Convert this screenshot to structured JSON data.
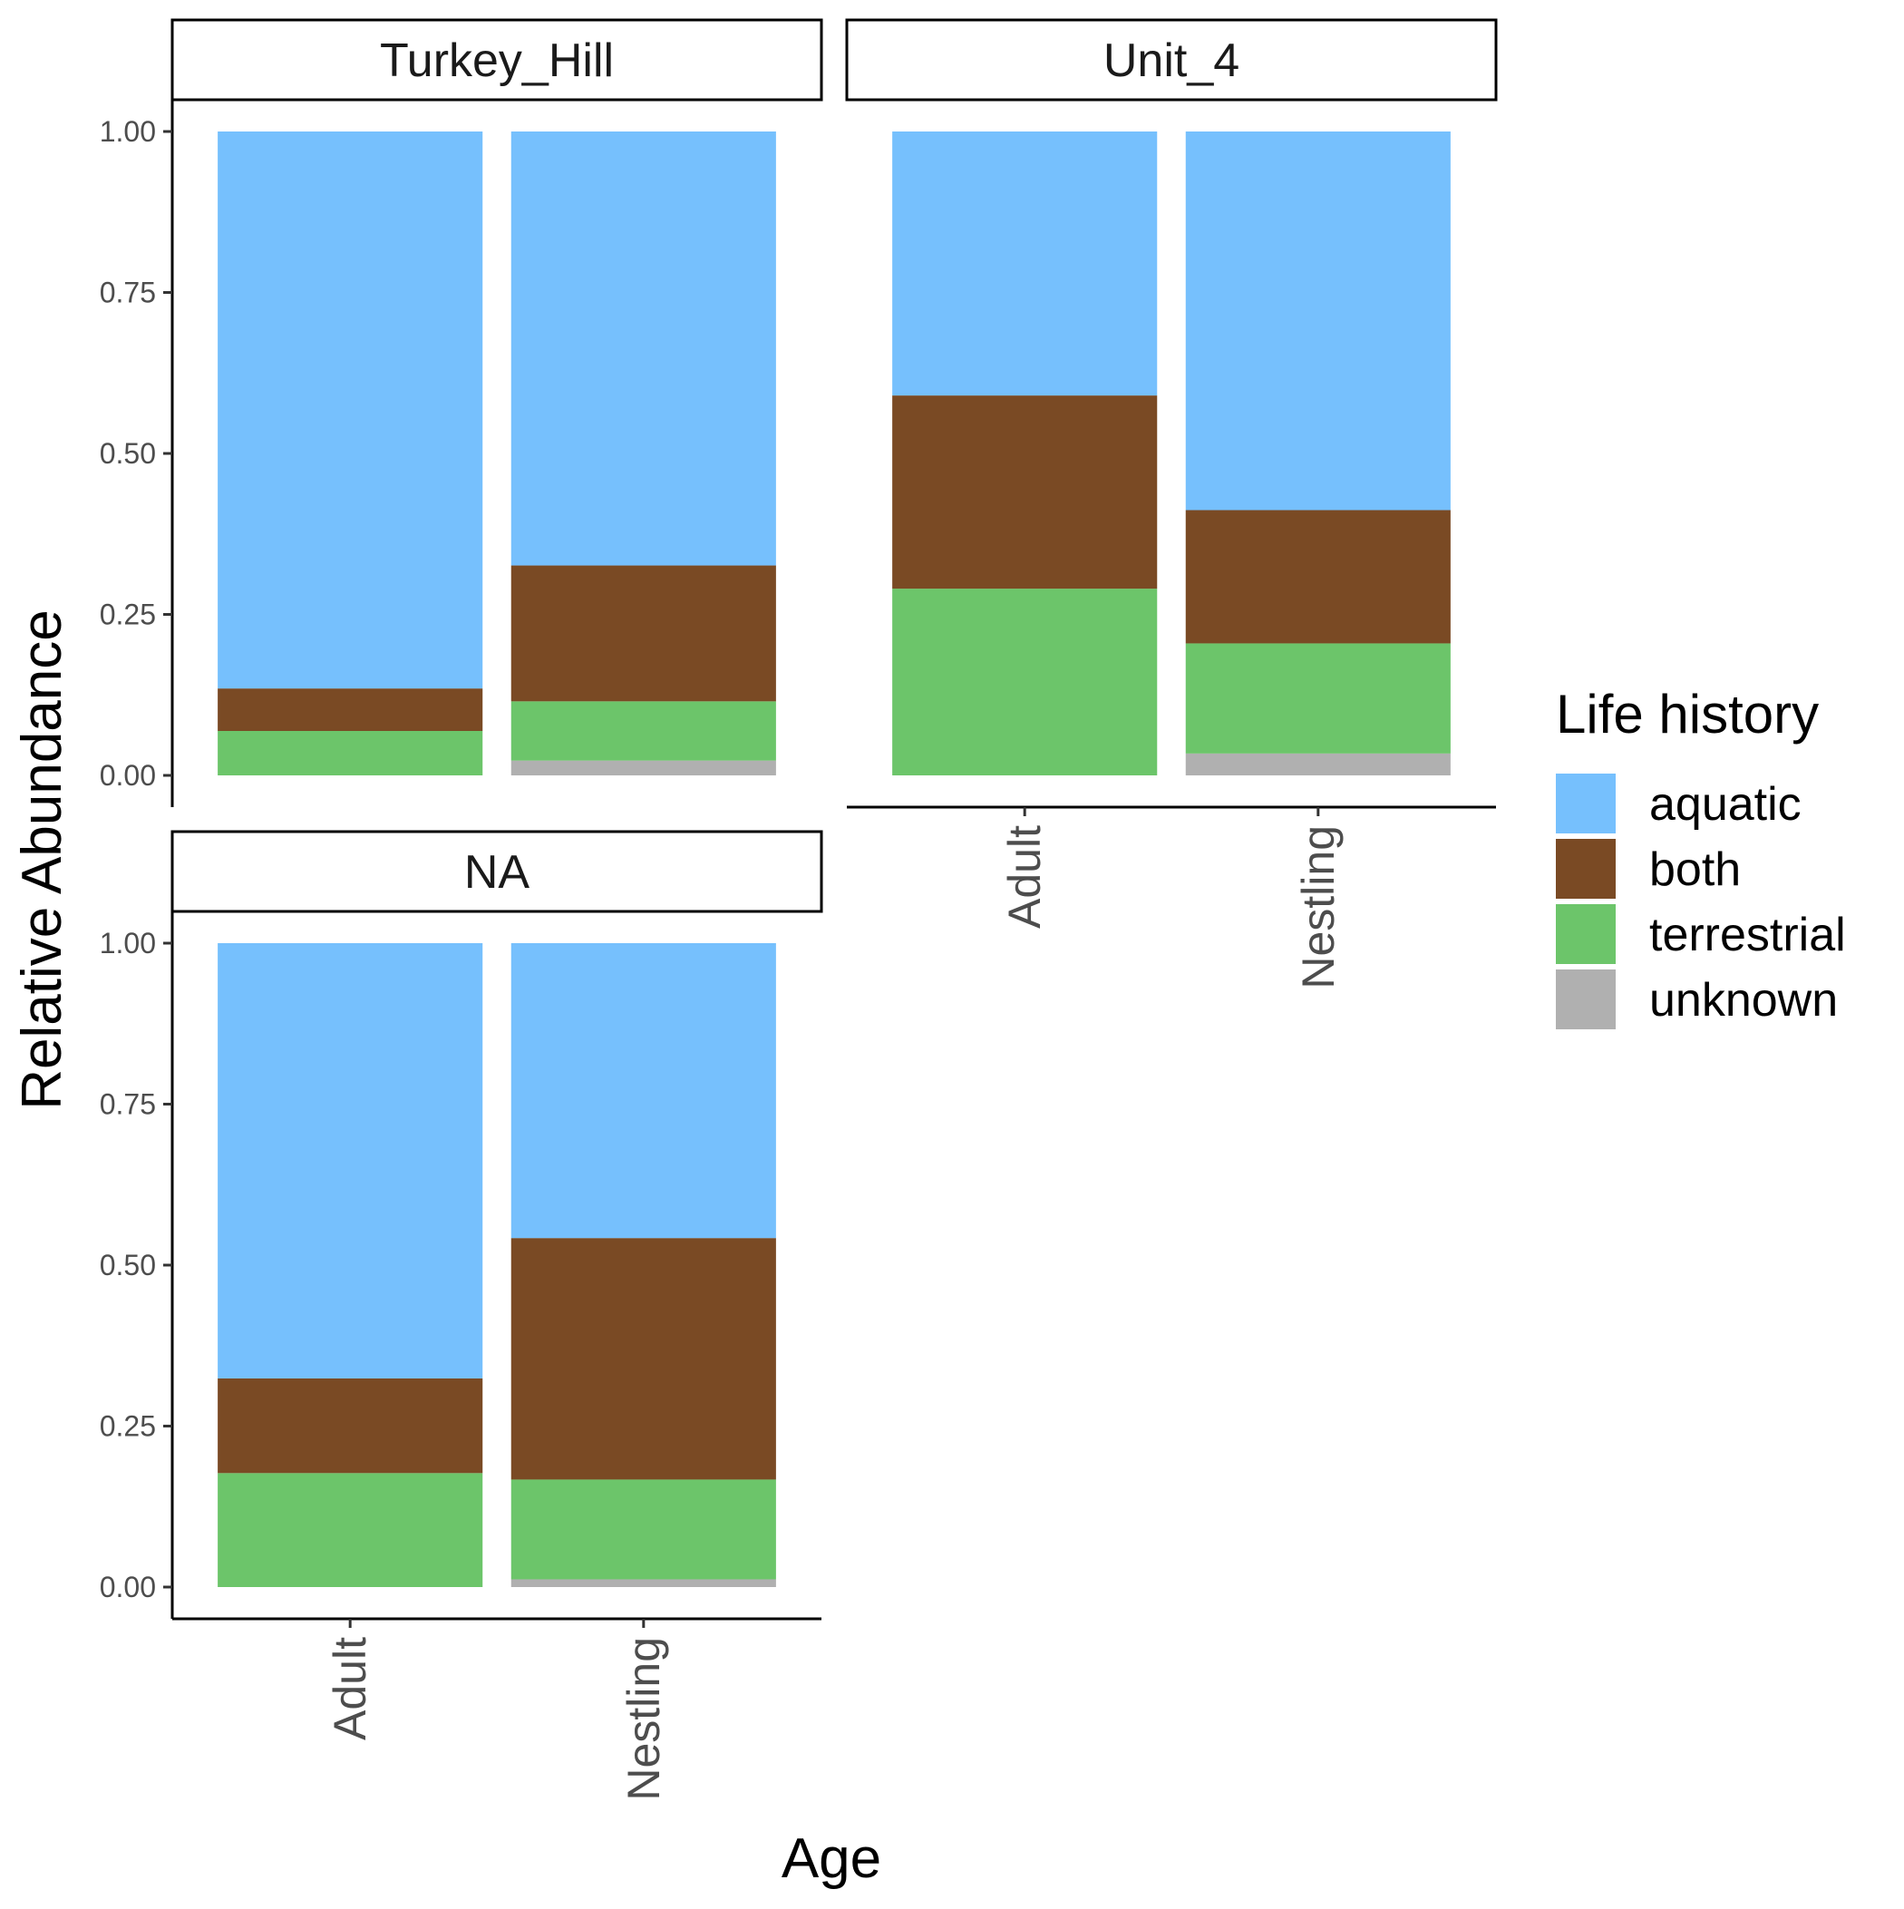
{
  "chart_data": {
    "type": "bar",
    "stacked": true,
    "xlabel": "Age",
    "ylabel": "Relative Abundance",
    "ylim": [
      0,
      1
    ],
    "y_ticks": [
      "0.00",
      "0.25",
      "0.50",
      "0.75",
      "1.00"
    ],
    "y_tick_values": [
      0,
      0.25,
      0.5,
      0.75,
      1
    ],
    "categories": [
      "Adult",
      "Nestling"
    ],
    "legend": {
      "title": "Life history",
      "placement": "right",
      "entries": [
        "aquatic",
        "both",
        "terrestrial",
        "unknown"
      ]
    },
    "colors": {
      "aquatic": "#76c0fd",
      "both": "#7a4a24",
      "terrestrial": "#6cc56a",
      "unknown": "#b0b0b0"
    },
    "stack_order_bottom_to_top": [
      "unknown",
      "terrestrial",
      "both",
      "aquatic"
    ],
    "grid": false,
    "panels": [
      {
        "facet": "Turkey_Hill",
        "series": [
          {
            "name": "aquatic",
            "values": [
              0.865,
              0.674
            ]
          },
          {
            "name": "both",
            "values": [
              0.066,
              0.211
            ]
          },
          {
            "name": "terrestrial",
            "values": [
              0.069,
              0.092
            ]
          },
          {
            "name": "unknown",
            "values": [
              0.0,
              0.023
            ]
          }
        ]
      },
      {
        "facet": "Unit_4",
        "series": [
          {
            "name": "aquatic",
            "values": [
              0.41,
              0.588
            ]
          },
          {
            "name": "both",
            "values": [
              0.3,
              0.207
            ]
          },
          {
            "name": "terrestrial",
            "values": [
              0.29,
              0.171
            ]
          },
          {
            "name": "unknown",
            "values": [
              0.0,
              0.034
            ]
          }
        ]
      },
      {
        "facet": "NA",
        "series": [
          {
            "name": "aquatic",
            "values": [
              0.676,
              0.458
            ]
          },
          {
            "name": "both",
            "values": [
              0.147,
              0.375
            ]
          },
          {
            "name": "terrestrial",
            "values": [
              0.177,
              0.155
            ]
          },
          {
            "name": "unknown",
            "values": [
              0.0,
              0.012
            ]
          }
        ]
      }
    ]
  }
}
